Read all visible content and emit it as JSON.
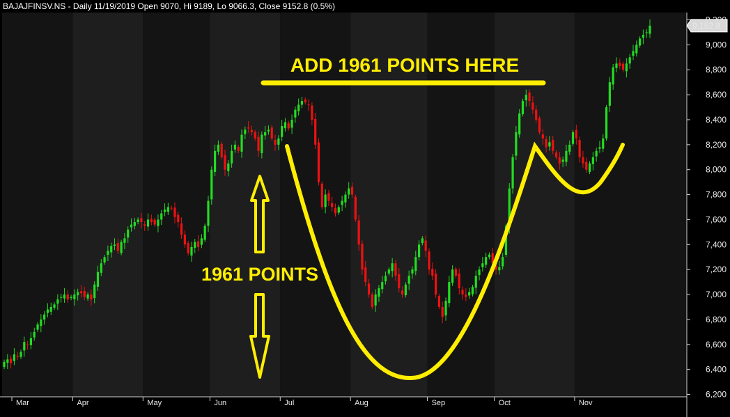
{
  "header": {
    "title": "BAJAJFINSV.NS - Daily 11/19/2019 Open 9070, Hi 9189, Lo 9066.3, Close 9152.8 (0.5%)"
  },
  "annotations": {
    "top_label": "ADD 1961 POINTS HERE",
    "middle_label": "1961 POINTS"
  },
  "colors": {
    "background": "#000000",
    "band_dark": "#141414",
    "band_light": "#1e1e1e",
    "up": "#22dd22",
    "down": "#ee1111",
    "annotation": "#ffee00",
    "axis_text": "#e8e8e8"
  },
  "chart_data": {
    "type": "candlestick",
    "title": "BAJAJFINSV.NS - Daily 11/19/2019 Open 9070, Hi 9189, Lo 9066.3, Close 9152.8 (0.5%)",
    "xlabel": "",
    "ylabel": "",
    "ylim": [
      6200,
      9200
    ],
    "y_ticks": [
      6200,
      6400,
      6600,
      6800,
      7000,
      7200,
      7400,
      7600,
      7800,
      8000,
      8200,
      8400,
      8600,
      8800,
      9000,
      9200
    ],
    "y_tick_labels": [
      "6,200",
      "6,400",
      "6,600",
      "6,800",
      "7,000",
      "7,200",
      "7,400",
      "7,600",
      "7,800",
      "8,000",
      "8,200",
      "8,400",
      "8,600",
      "8,800",
      "9,000",
      "9,200"
    ],
    "months": [
      "Mar",
      "Apr",
      "May",
      "Jun",
      "Jul",
      "Aug",
      "Sep",
      "Oct",
      "Nov"
    ],
    "month_start_index": [
      0,
      21,
      42,
      62,
      83,
      104,
      127,
      147,
      171
    ],
    "last_price_label": "9,152.8",
    "grid": false,
    "close": [
      6460,
      6480,
      6450,
      6520,
      6500,
      6540,
      6620,
      6600,
      6650,
      6700,
      6760,
      6800,
      6840,
      6880,
      6900,
      6920,
      6960,
      6980,
      7000,
      6960,
      6980,
      7000,
      7020,
      7010,
      6980,
      7000,
      6960,
      7080,
      7180,
      7250,
      7300,
      7350,
      7390,
      7400,
      7350,
      7420,
      7450,
      7520,
      7560,
      7580,
      7600,
      7580,
      7550,
      7600,
      7580,
      7560,
      7600,
      7650,
      7680,
      7700,
      7690,
      7620,
      7580,
      7480,
      7400,
      7330,
      7380,
      7420,
      7380,
      7450,
      7550,
      7750,
      8000,
      8150,
      8200,
      8100,
      8000,
      8050,
      8150,
      8200,
      8150,
      8280,
      8320,
      8330,
      8300,
      8250,
      8150,
      8280,
      8300,
      8320,
      8250,
      8200,
      8250,
      8350,
      8380,
      8330,
      8400,
      8480,
      8520,
      8550,
      8540,
      8520,
      8400,
      8200,
      7900,
      7700,
      7800,
      7750,
      7700,
      7650,
      7700,
      7750,
      7800,
      7850,
      7800,
      7600,
      7400,
      7200,
      7100,
      7000,
      6900,
      7000,
      7050,
      7100,
      7150,
      7200,
      7250,
      7150,
      7050,
      7000,
      7080,
      7150,
      7200,
      7300,
      7400,
      7450,
      7350,
      7200,
      7150,
      7000,
      6900,
      6820,
      6950,
      7100,
      7200,
      7150,
      7050,
      7000,
      6980,
      7020,
      7060,
      7150,
      7200,
      7250,
      7300,
      7320,
      7250,
      7200,
      7220,
      7300,
      7550,
      7850,
      8100,
      8300,
      8450,
      8550,
      8600,
      8550,
      8480,
      8400,
      8300,
      8250,
      8180,
      8220,
      8150,
      8100,
      8050,
      8080,
      8150,
      8200,
      8300,
      8250,
      8100,
      8050,
      8000,
      8050,
      8100,
      8150,
      8180,
      8250,
      8500,
      8700,
      8820,
      8850,
      8830,
      8800,
      8850,
      8900,
      8950,
      9000,
      9050,
      9080,
      9100,
      9153
    ]
  }
}
